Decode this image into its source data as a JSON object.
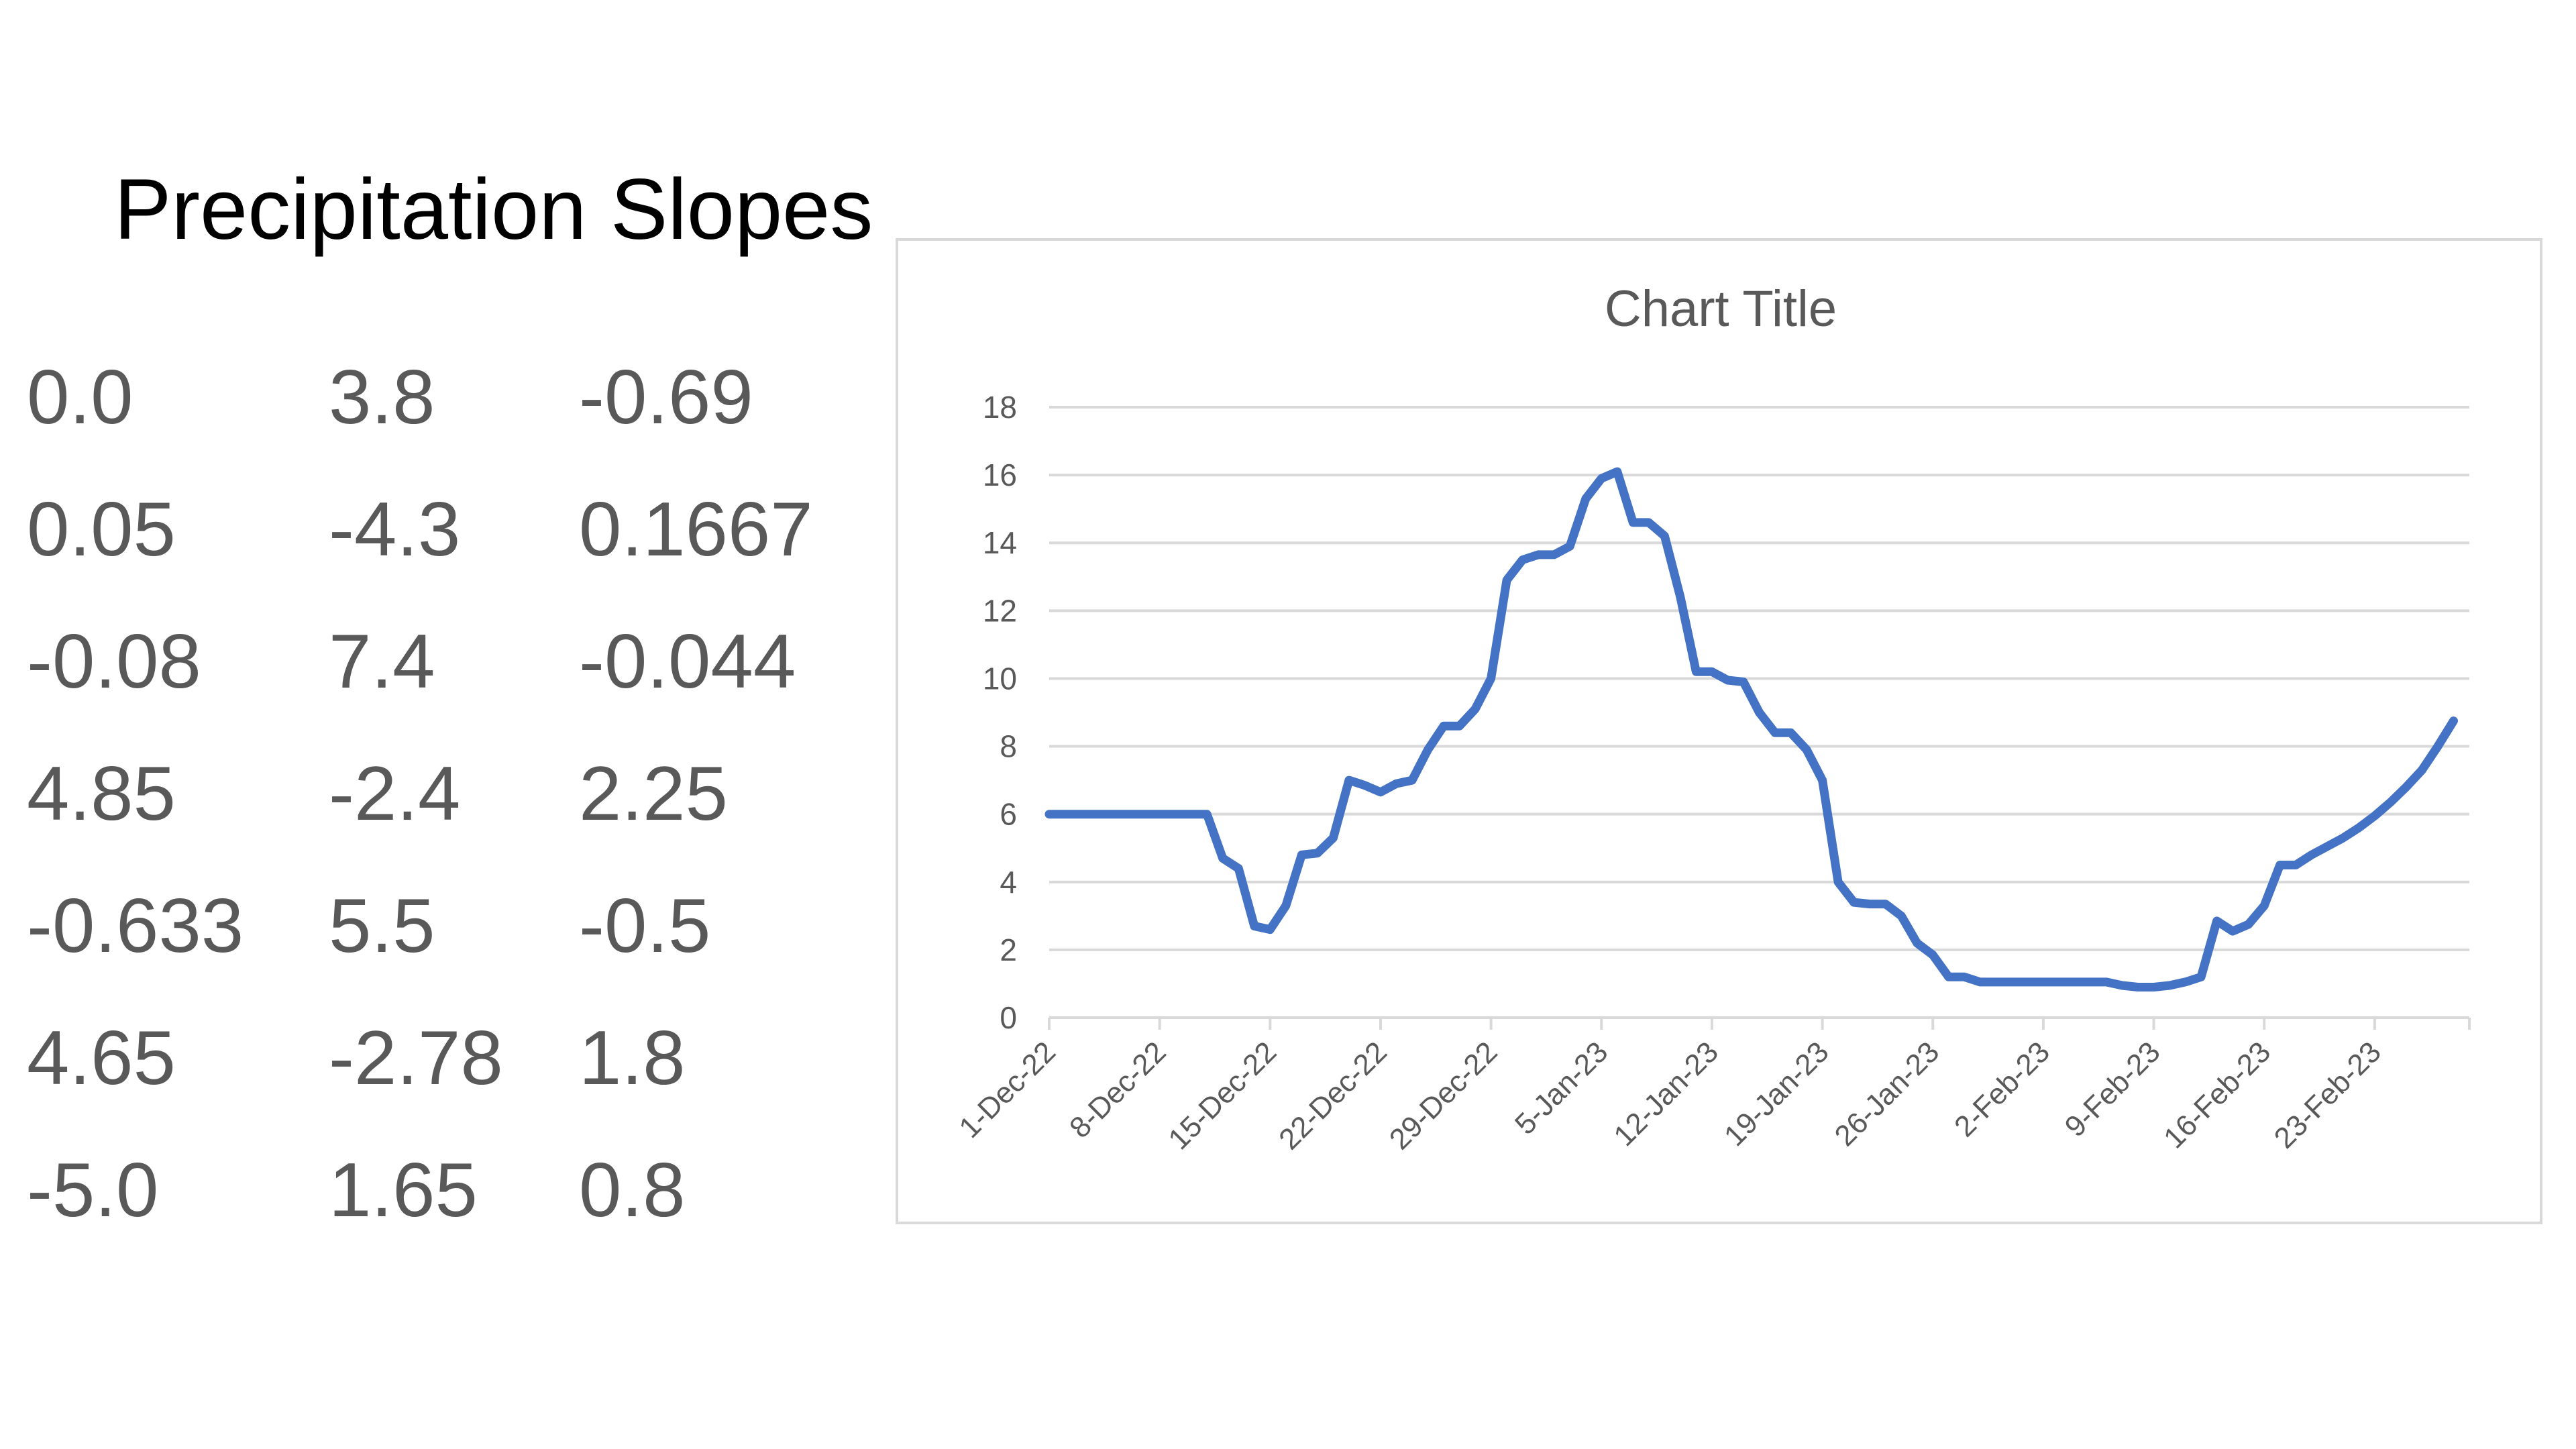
{
  "slide": {
    "title": "Precipitation Slopes",
    "slopes": [
      [
        "0.0",
        "3.8",
        "-0.69"
      ],
      [
        "0.05",
        "-4.3",
        "0.1667"
      ],
      [
        "-0.08",
        "7.4",
        "-0.044"
      ],
      [
        "4.85",
        "-2.4",
        "2.25"
      ],
      [
        "-0.633",
        "5.5",
        "-0.5"
      ],
      [
        "4.65",
        "-2.78",
        "1.8"
      ],
      [
        "-5.0",
        "1.65",
        "0.8"
      ]
    ]
  },
  "colors": {
    "series": "#4472c4",
    "gridline": "#d9d9d9",
    "text": "#595959"
  },
  "chart_data": {
    "type": "line",
    "title": "Chart Title",
    "xlabel": "",
    "ylabel": "",
    "ylim": [
      0,
      18
    ],
    "y_ticks": [
      0,
      2,
      4,
      6,
      8,
      10,
      12,
      14,
      16,
      18
    ],
    "x_range": [
      "2022-12-01",
      "2023-03-01"
    ],
    "x_tick_labels": [
      "1-Dec-22",
      "8-Dec-22",
      "15-Dec-22",
      "22-Dec-22",
      "29-Dec-22",
      "5-Jan-23",
      "12-Jan-23",
      "19-Jan-23",
      "26-Jan-23",
      "2-Feb-23",
      "9-Feb-23",
      "16-Feb-23",
      "23-Feb-23"
    ],
    "x_tick_dates": [
      "2022-12-01",
      "2022-12-08",
      "2022-12-15",
      "2022-12-22",
      "2022-12-29",
      "2023-01-05",
      "2023-01-12",
      "2023-01-19",
      "2023-01-26",
      "2023-02-02",
      "2023-02-09",
      "2023-02-16",
      "2023-02-23"
    ],
    "grid": true,
    "legend": "none",
    "series": [
      {
        "points": [
          [
            "2022-12-01",
            6.0
          ],
          [
            "2022-12-11",
            6.0
          ],
          [
            "2022-12-12",
            4.7
          ],
          [
            "2022-12-13",
            4.4
          ],
          [
            "2022-12-14",
            2.7
          ],
          [
            "2022-12-15",
            2.6
          ],
          [
            "2022-12-16",
            3.3
          ],
          [
            "2022-12-17",
            4.8
          ],
          [
            "2022-12-18",
            4.85
          ],
          [
            "2022-12-19",
            5.3
          ],
          [
            "2022-12-20",
            7.0
          ],
          [
            "2022-12-21",
            6.85
          ],
          [
            "2022-12-22",
            6.65
          ],
          [
            "2022-12-23",
            6.9
          ],
          [
            "2022-12-24",
            7.0
          ],
          [
            "2022-12-25",
            7.9
          ],
          [
            "2022-12-26",
            8.6
          ],
          [
            "2022-12-27",
            8.6
          ],
          [
            "2022-12-28",
            9.1
          ],
          [
            "2022-12-29",
            10.0
          ],
          [
            "2022-12-30",
            12.9
          ],
          [
            "2022-12-31",
            13.5
          ],
          [
            "2023-01-01",
            13.65
          ],
          [
            "2023-01-02",
            13.65
          ],
          [
            "2023-01-03",
            13.9
          ],
          [
            "2023-01-04",
            15.3
          ],
          [
            "2023-01-05",
            15.9
          ],
          [
            "2023-01-06",
            16.1
          ],
          [
            "2023-01-07",
            14.6
          ],
          [
            "2023-01-08",
            14.6
          ],
          [
            "2023-01-09",
            14.2
          ],
          [
            "2023-01-10",
            12.4
          ],
          [
            "2023-01-11",
            10.2
          ],
          [
            "2023-01-12",
            10.2
          ],
          [
            "2023-01-13",
            9.95
          ],
          [
            "2023-01-14",
            9.9
          ],
          [
            "2023-01-15",
            9.0
          ],
          [
            "2023-01-16",
            8.4
          ],
          [
            "2023-01-17",
            8.4
          ],
          [
            "2023-01-18",
            7.9
          ],
          [
            "2023-01-19",
            7.0
          ],
          [
            "2023-01-20",
            4.0
          ],
          [
            "2023-01-21",
            3.4
          ],
          [
            "2023-01-22",
            3.35
          ],
          [
            "2023-01-23",
            3.35
          ],
          [
            "2023-01-24",
            3.0
          ],
          [
            "2023-01-25",
            2.2
          ],
          [
            "2023-01-26",
            1.85
          ],
          [
            "2023-01-27",
            1.2
          ],
          [
            "2023-01-28",
            1.2
          ],
          [
            "2023-01-29",
            1.05
          ],
          [
            "2023-02-05",
            1.05
          ],
          [
            "2023-02-06",
            1.05
          ],
          [
            "2023-02-07",
            0.95
          ],
          [
            "2023-02-08",
            0.9
          ],
          [
            "2023-02-09",
            0.9
          ],
          [
            "2023-02-10",
            0.95
          ],
          [
            "2023-02-11",
            1.05
          ],
          [
            "2023-02-12",
            1.2
          ],
          [
            "2023-02-13",
            2.85
          ],
          [
            "2023-02-14",
            2.55
          ],
          [
            "2023-02-15",
            2.75
          ],
          [
            "2023-02-16",
            3.3
          ],
          [
            "2023-02-17",
            4.5
          ],
          [
            "2023-02-18",
            4.5
          ],
          [
            "2023-02-19",
            4.8
          ],
          [
            "2023-02-20",
            5.05
          ],
          [
            "2023-02-21",
            5.3
          ],
          [
            "2023-02-22",
            5.6
          ],
          [
            "2023-02-23",
            5.95
          ],
          [
            "2023-02-24",
            6.35
          ],
          [
            "2023-02-25",
            6.8
          ],
          [
            "2023-02-26",
            7.3
          ],
          [
            "2023-02-27",
            8.0
          ],
          [
            "2023-02-28",
            8.75
          ]
        ]
      }
    ]
  }
}
